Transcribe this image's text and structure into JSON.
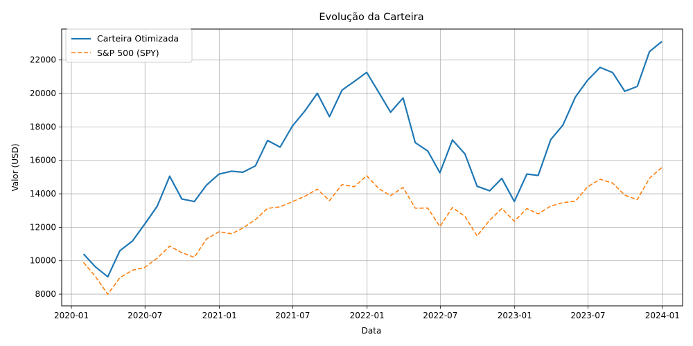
{
  "chart_data": {
    "type": "line",
    "title": "Evolução da Carteira",
    "xlabel": "Data",
    "ylabel": "Valor (USD)",
    "grid": true,
    "legend_position": "top-left",
    "x_ticks": [
      "2020-01",
      "2020-07",
      "2021-01",
      "2021-07",
      "2022-01",
      "2022-07",
      "2023-01",
      "2023-07",
      "2024-01"
    ],
    "y_ticks": [
      8000,
      10000,
      12000,
      14000,
      16000,
      18000,
      20000,
      22000
    ],
    "xlim": [
      "2019-12-08",
      "2024-02-20"
    ],
    "ylim": [
      7300,
      23850
    ],
    "x": [
      "2020-01-31",
      "2020-02-29",
      "2020-03-31",
      "2020-04-30",
      "2020-05-31",
      "2020-06-30",
      "2020-07-31",
      "2020-08-31",
      "2020-09-30",
      "2020-10-31",
      "2020-11-30",
      "2020-12-31",
      "2021-01-31",
      "2021-02-28",
      "2021-03-31",
      "2021-04-30",
      "2021-05-31",
      "2021-06-30",
      "2021-07-31",
      "2021-08-31",
      "2021-09-30",
      "2021-10-31",
      "2021-11-30",
      "2021-12-31",
      "2022-01-31",
      "2022-02-28",
      "2022-03-31",
      "2022-04-30",
      "2022-05-31",
      "2022-06-30",
      "2022-07-31",
      "2022-08-31",
      "2022-09-30",
      "2022-10-31",
      "2022-11-30",
      "2022-12-31",
      "2023-01-31",
      "2023-02-28",
      "2023-03-31",
      "2023-04-30",
      "2023-05-31",
      "2023-06-30",
      "2023-07-31",
      "2023-08-31",
      "2023-09-30",
      "2023-10-31",
      "2023-11-30",
      "2023-12-31"
    ],
    "series": [
      {
        "name": "Carteira Otimizada",
        "color": "#1f77b4",
        "line_style": "solid",
        "values": [
          10400,
          9640,
          9040,
          10600,
          11180,
          12180,
          13250,
          15050,
          13690,
          13540,
          14520,
          15180,
          15350,
          15290,
          15670,
          17190,
          16790,
          18040,
          18950,
          20010,
          18610,
          20200,
          20710,
          21260,
          20020,
          18880,
          19730,
          17060,
          16560,
          15260,
          17220,
          16380,
          14450,
          14180,
          14920,
          13540,
          15180,
          15100,
          17240,
          18100,
          19790,
          20790,
          21560,
          21250,
          20130,
          20420,
          22500,
          23110
        ]
      },
      {
        "name": "S&P 500 (SPY)",
        "color": "#ff7f0e",
        "line_style": "dashed",
        "values": [
          9900,
          9070,
          7990,
          8990,
          9430,
          9590,
          10150,
          10870,
          10480,
          10200,
          11300,
          11730,
          11610,
          11950,
          12460,
          13130,
          13220,
          13530,
          13850,
          14280,
          13590,
          14550,
          14420,
          15080,
          14290,
          13890,
          14380,
          13140,
          13150,
          12040,
          13180,
          12650,
          11480,
          12420,
          13120,
          12360,
          13120,
          12800,
          13270,
          13470,
          13560,
          14420,
          14870,
          14640,
          13920,
          13650,
          14930,
          15580
        ]
      }
    ]
  }
}
